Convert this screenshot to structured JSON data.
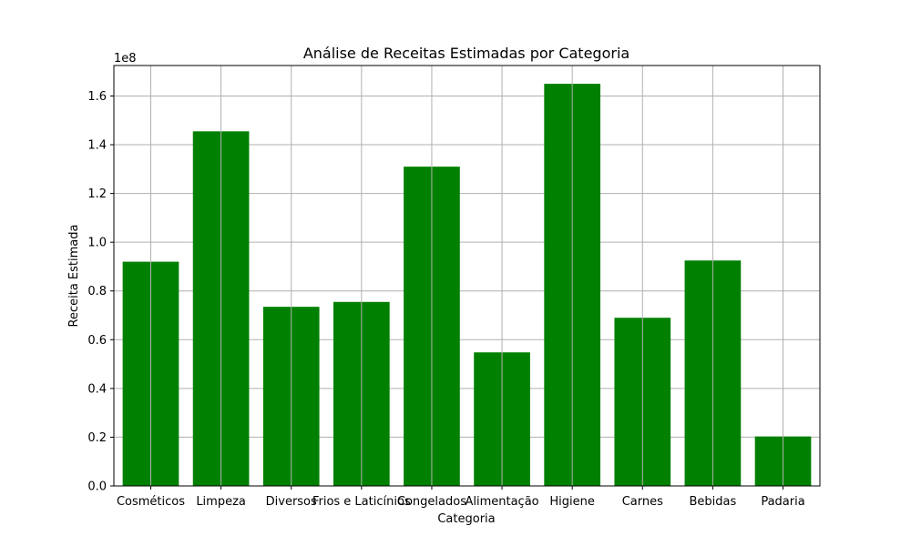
{
  "chart_data": {
    "type": "bar",
    "title": "Análise de Receitas Estimadas por Categoria",
    "xlabel": "Categoria",
    "ylabel": "Receita Estimada",
    "y_scale_label": "1e8",
    "categories": [
      "Cosméticos",
      "Limpeza",
      "Diversos",
      "Frios e Laticínios",
      "Congelados",
      "Alimentação",
      "Higiene",
      "Carnes",
      "Bebidas",
      "Padaria"
    ],
    "values": [
      92000000,
      145500000,
      73500000,
      75500000,
      131000000,
      54800000,
      165000000,
      69000000,
      92500000,
      20300000
    ],
    "ylim": [
      0,
      172500000
    ],
    "y_ticks": [
      0,
      20000000,
      40000000,
      60000000,
      80000000,
      100000000,
      120000000,
      140000000,
      160000000
    ],
    "y_tick_labels": [
      "0.0",
      "0.2",
      "0.4",
      "0.6",
      "0.8",
      "1.0",
      "1.2",
      "1.4",
      "1.6"
    ],
    "grid": true,
    "bar_color": "#008000"
  }
}
